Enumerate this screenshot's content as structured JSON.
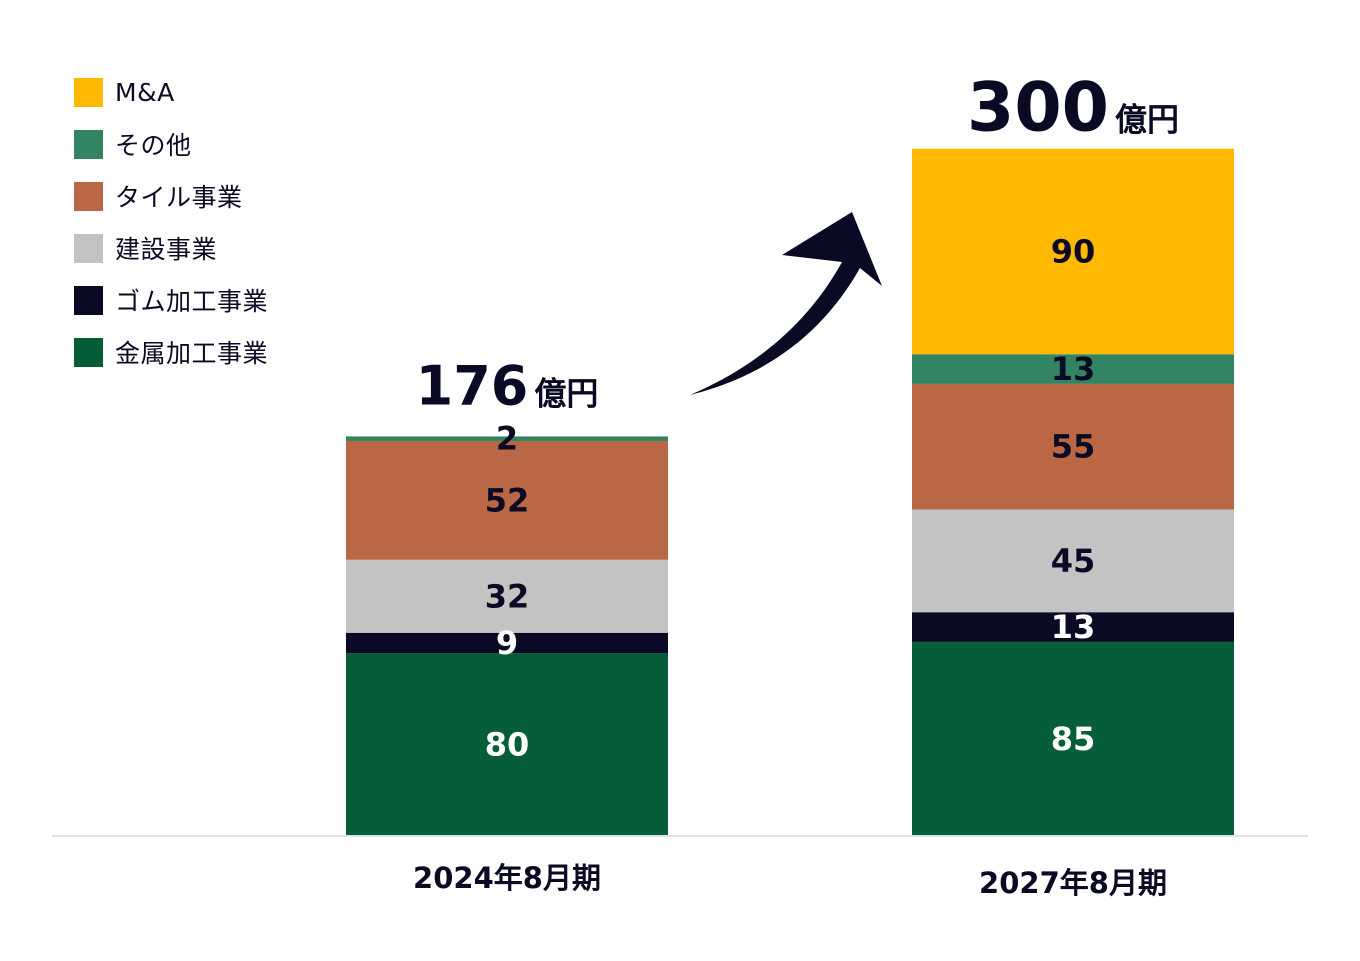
{
  "chart_data": {
    "type": "bar",
    "stacked": true,
    "categories": [
      "2024年8月期",
      "2027年8月期"
    ],
    "series": [
      {
        "name": "金属加工事業",
        "color": "#065e38",
        "label_color": "#ffffff",
        "values": [
          80,
          85
        ]
      },
      {
        "name": "ゴム加工事業",
        "color": "#0b0a24",
        "label_color": "#ffffff",
        "values": [
          9,
          13
        ]
      },
      {
        "name": "建設事業",
        "color": "#c3c3c3",
        "label_color": "#0b0a24",
        "values": [
          32,
          45
        ]
      },
      {
        "name": "タイル事業",
        "color": "#b96745",
        "label_color": "#0b0a24",
        "values": [
          52,
          55
        ]
      },
      {
        "name": "その他",
        "color": "#338462",
        "label_color": "#0b0a24",
        "values": [
          2,
          13
        ]
      },
      {
        "name": "M&A",
        "color": "#ffb901",
        "label_color": "#0b0a24",
        "values": [
          0,
          90
        ]
      }
    ],
    "totals": [
      {
        "value": "176",
        "unit": "億円"
      },
      {
        "value": "300",
        "unit": "億円"
      }
    ],
    "legend_order": [
      "M&A",
      "その他",
      "タイル事業",
      "建設事業",
      "ゴム加工事業",
      "金属加工事業"
    ],
    "legend_position": "top-left",
    "ylim": [
      0,
      300
    ],
    "grid": false,
    "annotation": "growth-arrow"
  }
}
